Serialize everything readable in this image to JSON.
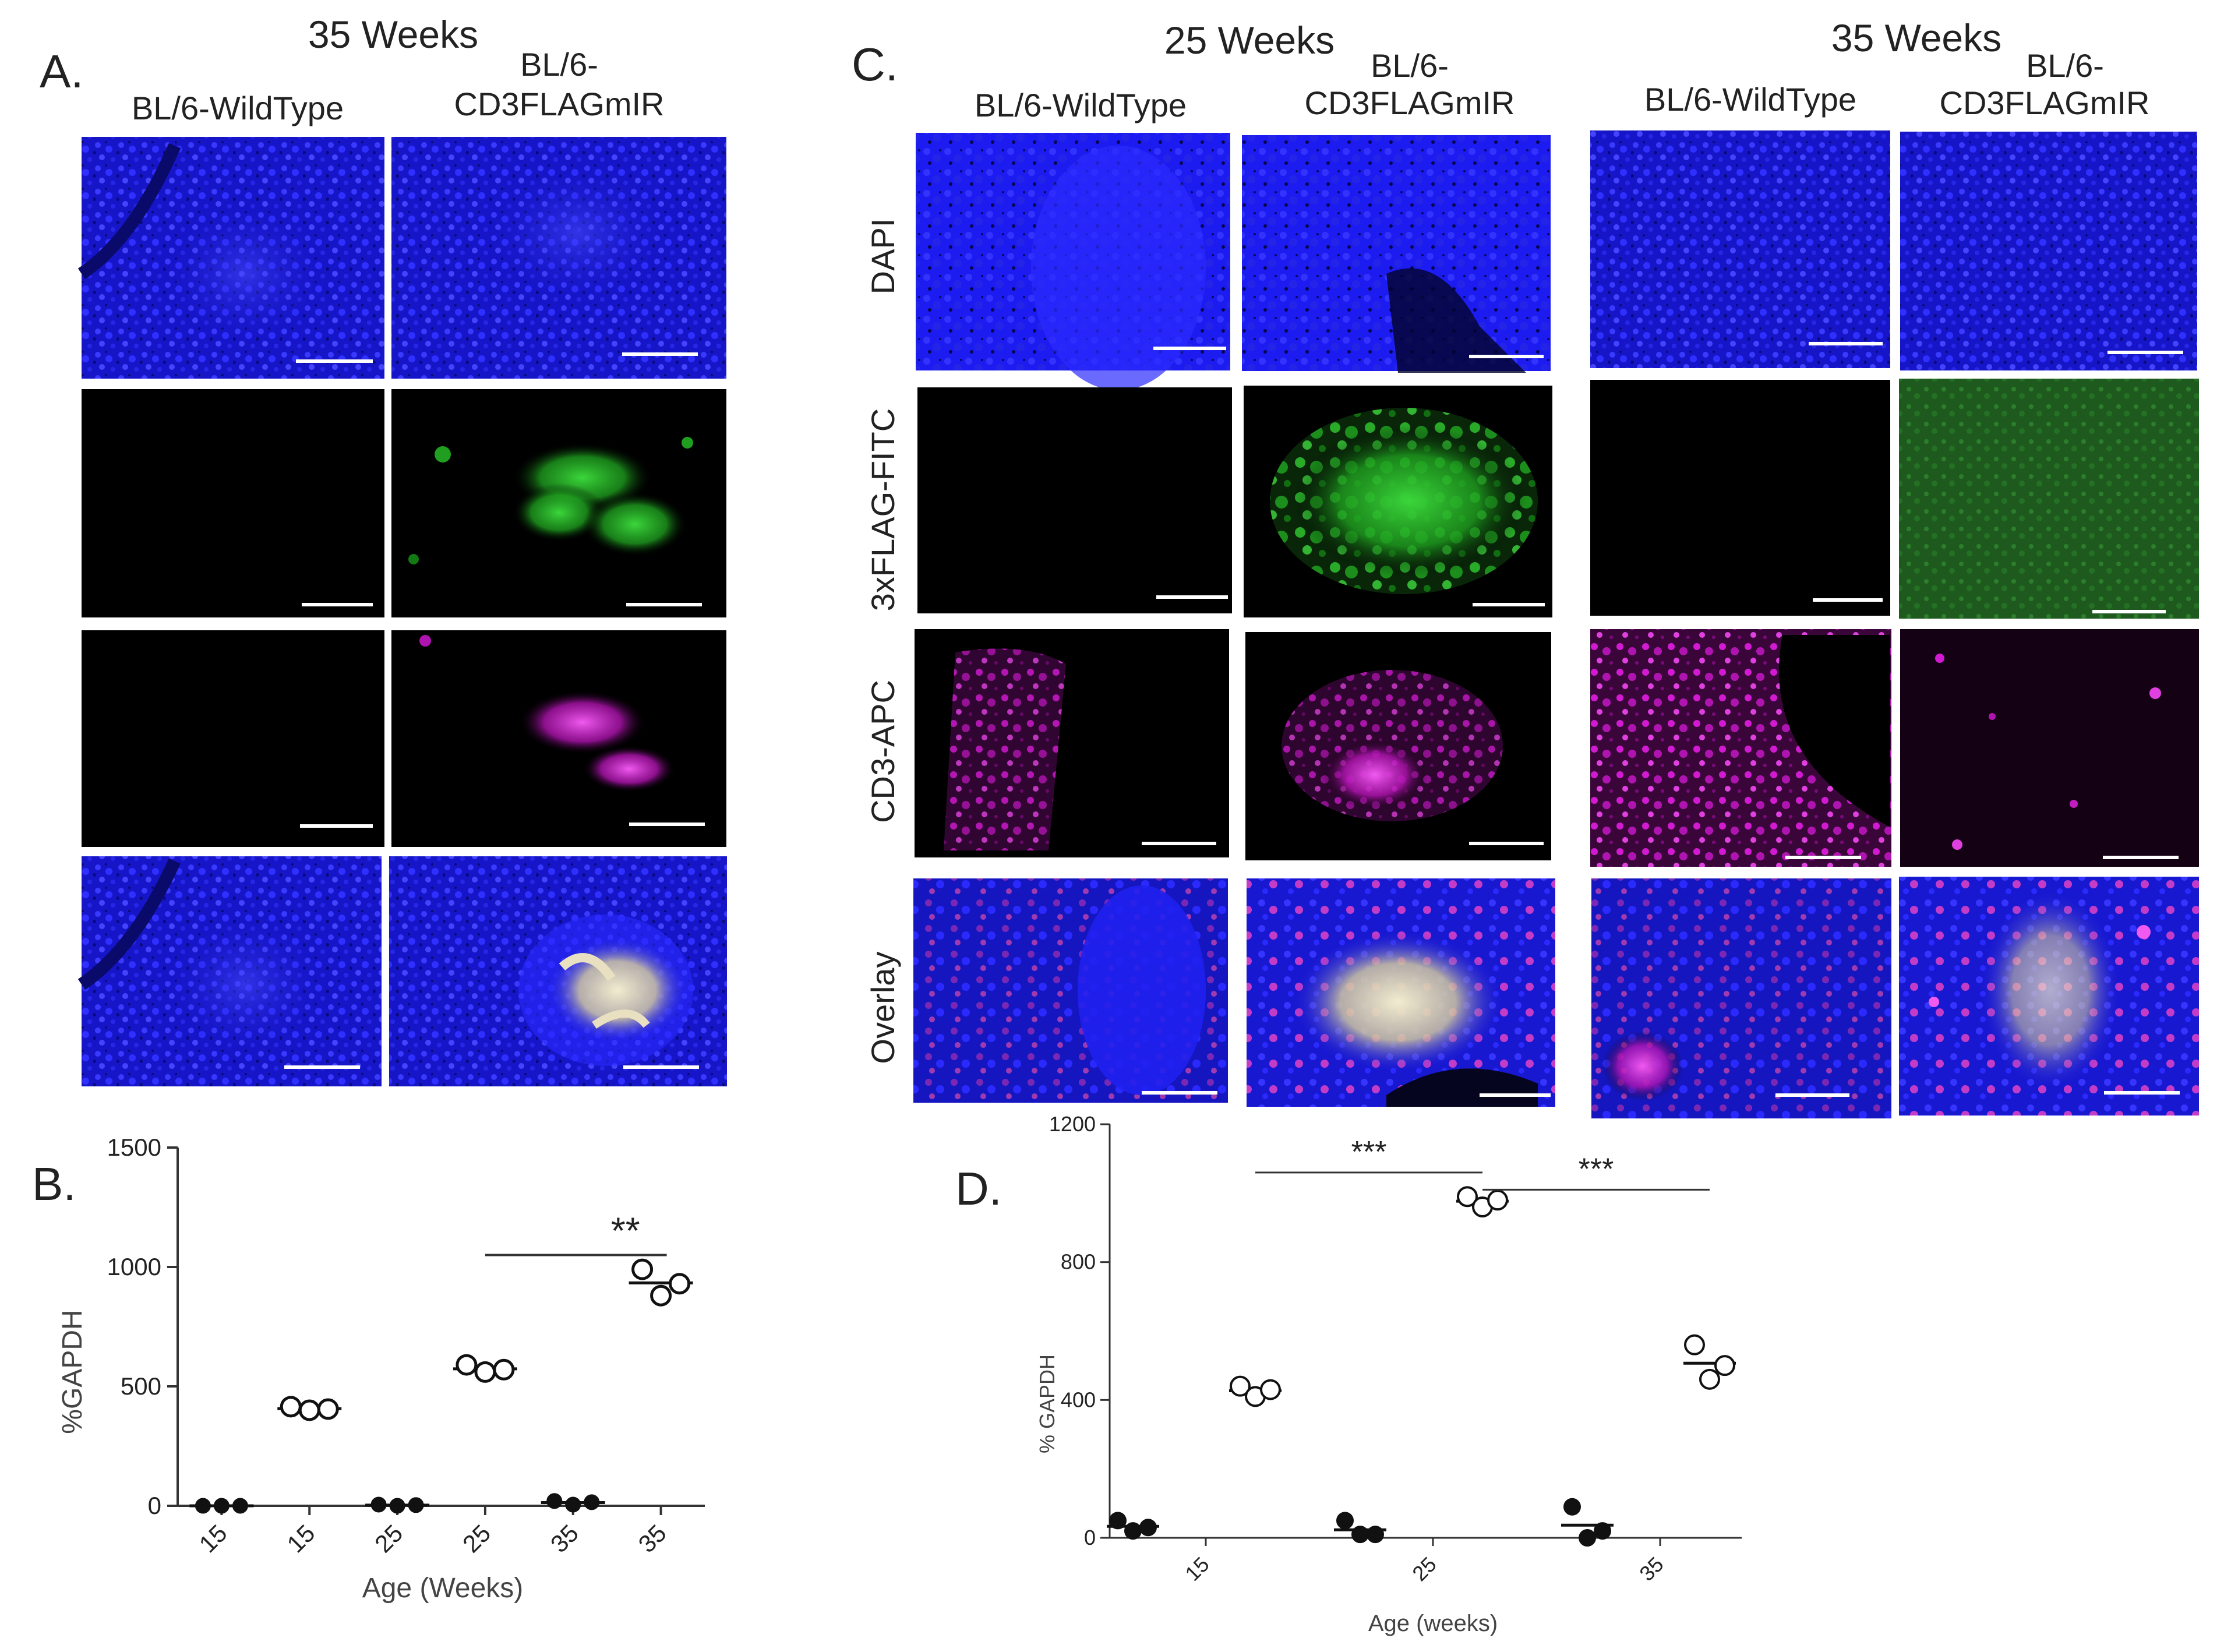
{
  "panel_a": {
    "letter": "A.",
    "time_header": "35 Weeks",
    "columns": [
      "BL/6-WildType",
      "BL/6-",
      "CD3FLAGmIR"
    ],
    "row_colors": [
      "dapi",
      "fitc_wt_blank",
      "apc",
      "overlay"
    ]
  },
  "panel_c": {
    "letter": "C.",
    "time_headers": [
      "25 Weeks",
      "35 Weeks"
    ],
    "col_wt": "BL/6-WildType",
    "col_tg_line1": "BL/6-",
    "col_tg_line2": "CD3FLAGmIR",
    "row_labels": [
      "DAPI",
      "3xFLAG-FITC",
      "CD3-APC",
      "Overlay"
    ]
  },
  "colors": {
    "dapi": "#1a1aee",
    "fitc": "#22b022",
    "apc": "#d21ad2",
    "black": "#000000",
    "overlay_hi": "#e8e0c0"
  },
  "chart_data": [
    {
      "type": "scatter",
      "panel": "B.",
      "title": "",
      "ylabel": "%GAPDH",
      "xlabel": "Age (Weeks)",
      "ylim": [
        0,
        1500
      ],
      "yticks": [
        0,
        500,
        1000,
        1500
      ],
      "categories": [
        "15",
        "15",
        "25",
        "25",
        "35",
        "35"
      ],
      "groups": [
        {
          "category_index": 0,
          "fill": "filled",
          "values": [
            0,
            0,
            0
          ]
        },
        {
          "category_index": 1,
          "fill": "open",
          "values": [
            415,
            400,
            405
          ]
        },
        {
          "category_index": 2,
          "fill": "filled",
          "values": [
            5,
            0,
            3
          ]
        },
        {
          "category_index": 3,
          "fill": "open",
          "values": [
            590,
            560,
            570
          ]
        },
        {
          "category_index": 4,
          "fill": "filled",
          "values": [
            20,
            5,
            15
          ]
        },
        {
          "category_index": 5,
          "fill": "open",
          "values": [
            990,
            880,
            930
          ]
        }
      ],
      "significance": {
        "label": "**",
        "from_index": 3,
        "to_index": 5,
        "level": 1050
      }
    },
    {
      "type": "scatter",
      "panel": "D.",
      "title": "",
      "ylabel": "% GAPDH",
      "xlabel": "Age (weeks)",
      "ylim": [
        0,
        1200
      ],
      "yticks": [
        0,
        400,
        800,
        1200
      ],
      "categories": [
        "15",
        "25",
        "35"
      ],
      "groups": [
        {
          "category_index": 0,
          "offset": -1,
          "fill": "filled",
          "values": [
            50,
            20,
            30
          ]
        },
        {
          "category_index": 0,
          "offset": 1,
          "fill": "open",
          "values": [
            440,
            410,
            430
          ]
        },
        {
          "category_index": 1,
          "offset": -1,
          "fill": "filled",
          "values": [
            50,
            10,
            10
          ]
        },
        {
          "category_index": 1,
          "offset": 1,
          "fill": "open",
          "values": [
            990,
            960,
            980
          ]
        },
        {
          "category_index": 2,
          "offset": -1,
          "fill": "filled",
          "values": [
            90,
            0,
            20
          ]
        },
        {
          "category_index": 2,
          "offset": 1,
          "fill": "open",
          "values": [
            560,
            460,
            500
          ]
        }
      ],
      "significance": [
        {
          "label": "***",
          "from": [
            0,
            1
          ],
          "to": [
            1,
            1
          ],
          "level": 1060
        },
        {
          "label": "***",
          "from": [
            1,
            1
          ],
          "to": [
            2,
            1
          ],
          "level": 1010
        }
      ]
    }
  ]
}
